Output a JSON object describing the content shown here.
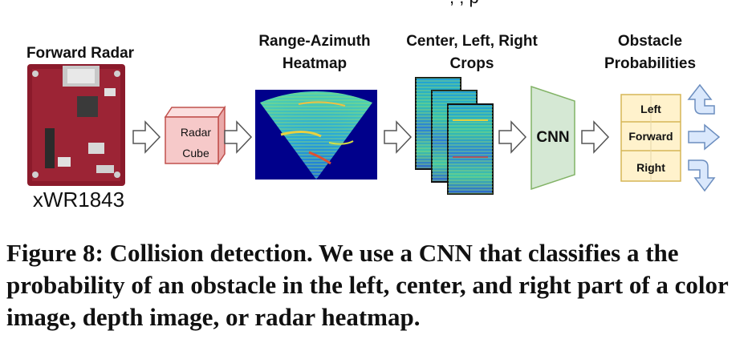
{
  "top_partial": ", , p",
  "stages": {
    "radar": {
      "title": "Forward Radar",
      "model": "xWR1843"
    },
    "cube": {
      "line1": "Radar",
      "line2": "Cube"
    },
    "heatmap": {
      "line1": "Range-Azimuth",
      "line2": "Heatmap"
    },
    "crops": {
      "line1": "Center, Left, Right",
      "line2": "Crops"
    },
    "cnn": {
      "label": "CNN"
    },
    "probs": {
      "line1": "Obstacle",
      "line2": "Probabilities",
      "cells": [
        "Left",
        "Forward",
        "Right"
      ]
    }
  },
  "colors": {
    "cube_fill": "#f6c9c9",
    "cube_stroke": "#c0504d",
    "cnn_fill": "#d5e8d4",
    "cnn_stroke": "#82b366",
    "prob_fill": "#fff2cc",
    "prob_stroke": "#d6b656",
    "out_arrow_fill": "#dae8fc",
    "out_arrow_stroke": "#6c8ebf",
    "heatmap_bg": "#00008b",
    "board": "#8b1a2b"
  },
  "caption": "Figure 8: Collision detection. We use a CNN that classifies a the probability of an obstacle in the left, center, and right part of a color image, depth image, or radar heatmap."
}
